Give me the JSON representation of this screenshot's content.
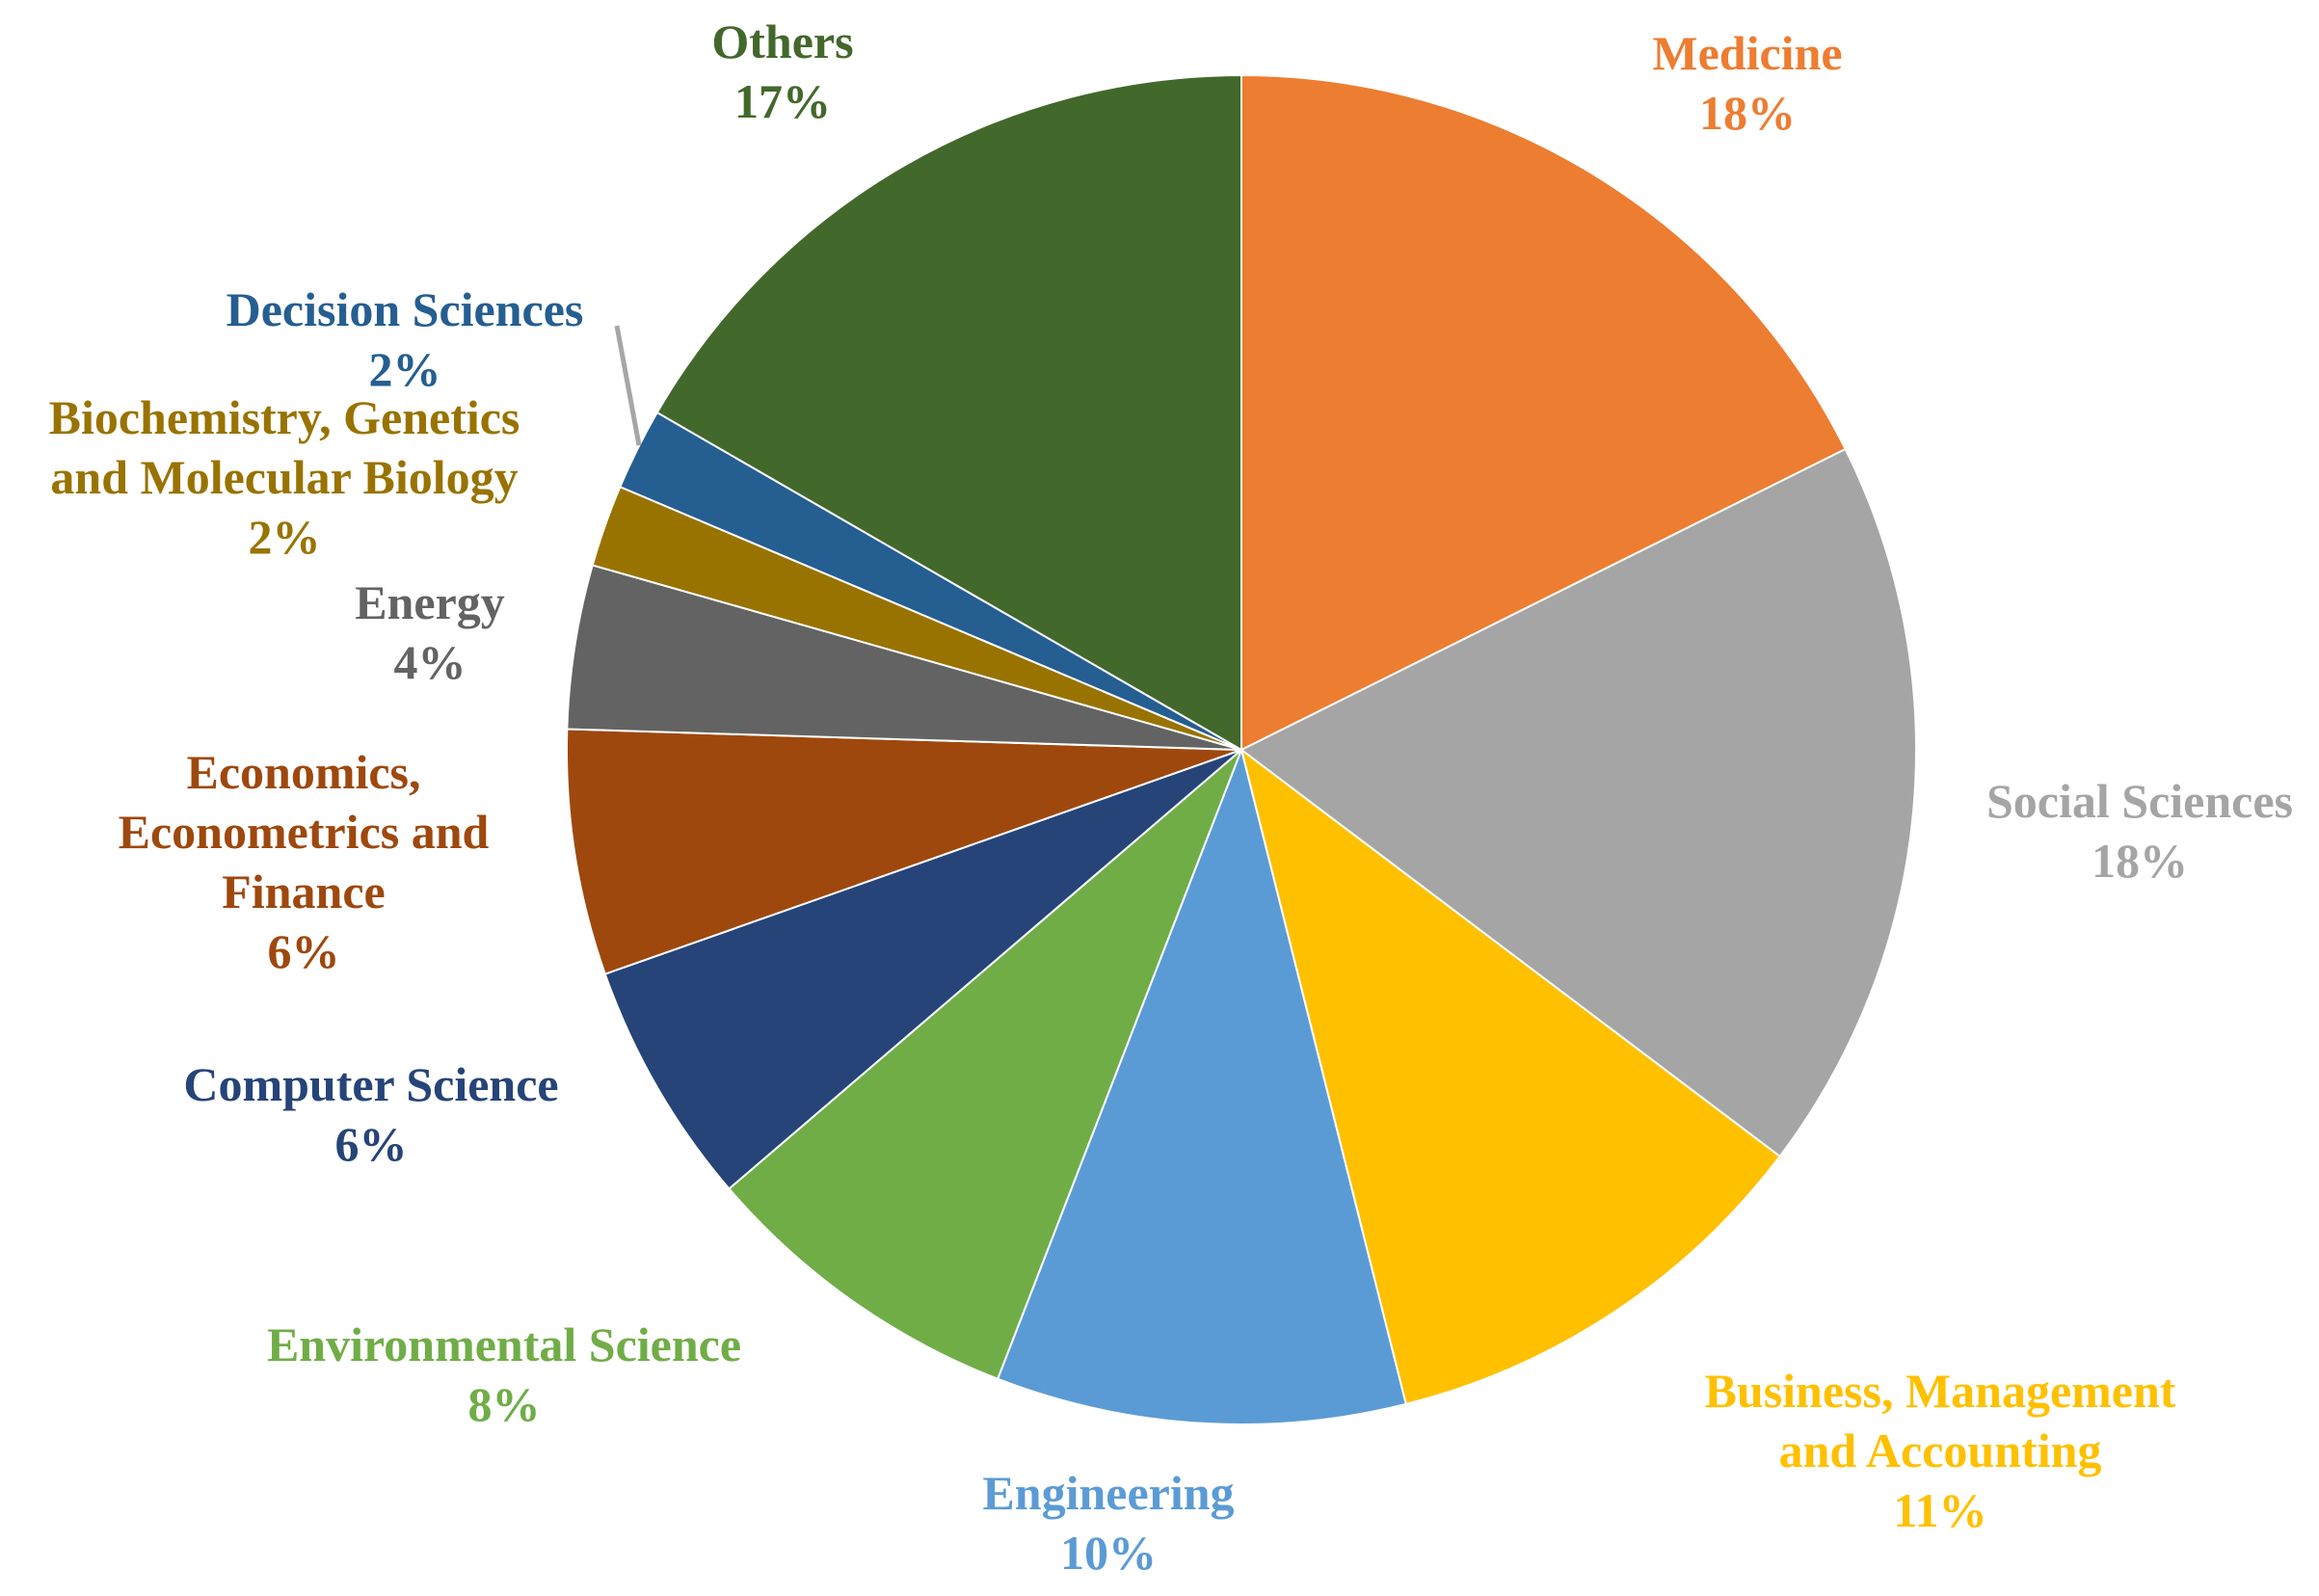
{
  "chart_data": {
    "type": "pie",
    "title": "",
    "start_angle": "12 o'clock",
    "direction": "clockwise",
    "slices": [
      {
        "name": "Medicine",
        "value": 18,
        "label": "18%",
        "color": "#ED7D31"
      },
      {
        "name": "Social Sciences",
        "value": 18,
        "label": "18%",
        "color": "#A5A5A5"
      },
      {
        "name": "Business, Management and Accounting",
        "value": 11,
        "label": "11%",
        "color": "#FFC000"
      },
      {
        "name": "Engineering",
        "value": 10,
        "label": "10%",
        "color": "#5B9BD5"
      },
      {
        "name": "Environmental Science",
        "value": 8,
        "label": "8%",
        "color": "#70AD47"
      },
      {
        "name": "Computer Science",
        "value": 6,
        "label": "6%",
        "color": "#264478"
      },
      {
        "name": "Economics, Econometrics and Finance",
        "value": 6,
        "label": "6%",
        "color": "#9E480E"
      },
      {
        "name": "Energy",
        "value": 4,
        "label": "4%",
        "color": "#636363"
      },
      {
        "name": "Biochemistry, Genetics and Molecular Biology",
        "value": 2,
        "label": "2%",
        "color": "#997300"
      },
      {
        "name": "Decision Sciences",
        "value": 2,
        "label": "2%",
        "color": "#255E91"
      },
      {
        "name": "Others",
        "value": 17,
        "label": "17%",
        "color": "#43682B"
      }
    ]
  },
  "labels": [
    {
      "lines": [
        "Medicine"
      ],
      "pct": "18%"
    },
    {
      "lines": [
        "Social Sciences"
      ],
      "pct": "18%"
    },
    {
      "lines": [
        "Business, Management",
        "and Accounting"
      ],
      "pct": "11%"
    },
    {
      "lines": [
        "Engineering"
      ],
      "pct": "10%"
    },
    {
      "lines": [
        "Environmental Science"
      ],
      "pct": "8%"
    },
    {
      "lines": [
        "Computer Science"
      ],
      "pct": "6%"
    },
    {
      "lines": [
        "Economics,",
        "Econometrics and",
        "Finance"
      ],
      "pct": "6%"
    },
    {
      "lines": [
        "Energy"
      ],
      "pct": "4%"
    },
    {
      "lines": [
        "Biochemistry, Genetics",
        "and Molecular Biology"
      ],
      "pct": "2%"
    },
    {
      "lines": [
        "Decision Sciences"
      ],
      "pct": "2%"
    },
    {
      "lines": [
        "Others"
      ],
      "pct": "17%"
    }
  ]
}
